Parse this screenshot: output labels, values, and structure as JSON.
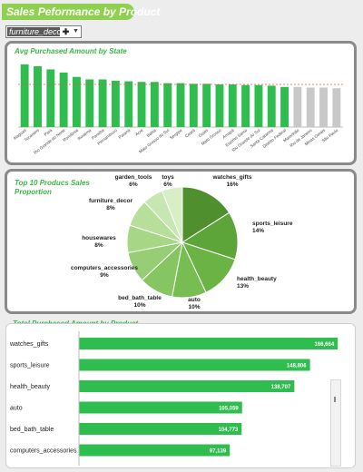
{
  "title": "Sales Peformance by Product",
  "filter": {
    "value": "furniture_decor",
    "clear_icon": "clear-filter-icon",
    "dropdown_icon": "dropdown-arrow-icon"
  },
  "colors": {
    "accent": "#8fd14f",
    "bar": "#2ebd4e",
    "bar_grey": "#c8c8c8",
    "title_green": "#3cb546",
    "avg_line": "#e05555"
  },
  "charts": {
    "state_title": "Avg Purchased Amount by State",
    "pie_title": "Top 10 Producs Sales Proportion",
    "product_title": "Total Purchased Amount by Product"
  },
  "chart_data": [
    {
      "type": "bar",
      "title": "Avg Purchased Amount by State",
      "categories": [
        "Alagoas",
        "Tocantins",
        "Pará",
        "Rio Grande do Norte",
        "Rondônia",
        "Roraima",
        "Paraíba",
        "Pernambuco",
        "Paraná",
        "Acre",
        "Bahia",
        "Mato Grosso do Sul",
        "Sergipe",
        "Ceará",
        "Goiás",
        "Mato Grosso",
        "Amapá",
        "Espírito Santo",
        "Rio Grande do Sul",
        "Santa Catarina",
        "Distrito Federal",
        "Maranhão",
        "Rio de Janeiro",
        "Minas Gerais",
        "São Paulo"
      ],
      "values": [
        100,
        97,
        92,
        87,
        80,
        76,
        76,
        74,
        73,
        72,
        72,
        70,
        70,
        69,
        69,
        68,
        68,
        67,
        67,
        66,
        64,
        64,
        63,
        63,
        62
      ],
      "highlight_count": 21,
      "average_line": 68,
      "ylim": [
        0,
        110
      ],
      "grid": false
    },
    {
      "type": "pie",
      "title": "Top 10 Producs Sales Proportion",
      "labels": [
        "watches_gifts",
        "sports_leisure",
        "health_beauty",
        "auto",
        "bed_bath_table",
        "computers_accessories",
        "housewares",
        "furniture_decor",
        "garden_tools",
        "toys"
      ],
      "values": [
        16,
        14,
        13,
        10,
        10,
        9,
        8,
        8,
        6,
        6
      ],
      "value_labels": [
        "16%",
        "14%",
        "13%",
        "10%",
        "10%",
        "9%",
        "8%",
        "8%",
        "6%",
        "6%"
      ]
    },
    {
      "type": "bar",
      "orientation": "horizontal",
      "title": "Total Purchased Amount by Product",
      "categories": [
        "watches_gifts",
        "sports_leisure",
        "health_beauty",
        "auto",
        "bed_bath_table",
        "computers_accessories"
      ],
      "values": [
        166664,
        148806,
        138707,
        105059,
        104773,
        97139
      ],
      "value_labels": [
        "166,664",
        "148,806",
        "138,707",
        "105,059",
        "104,773",
        "97,139"
      ],
      "xlim": [
        0,
        180000
      ]
    }
  ]
}
